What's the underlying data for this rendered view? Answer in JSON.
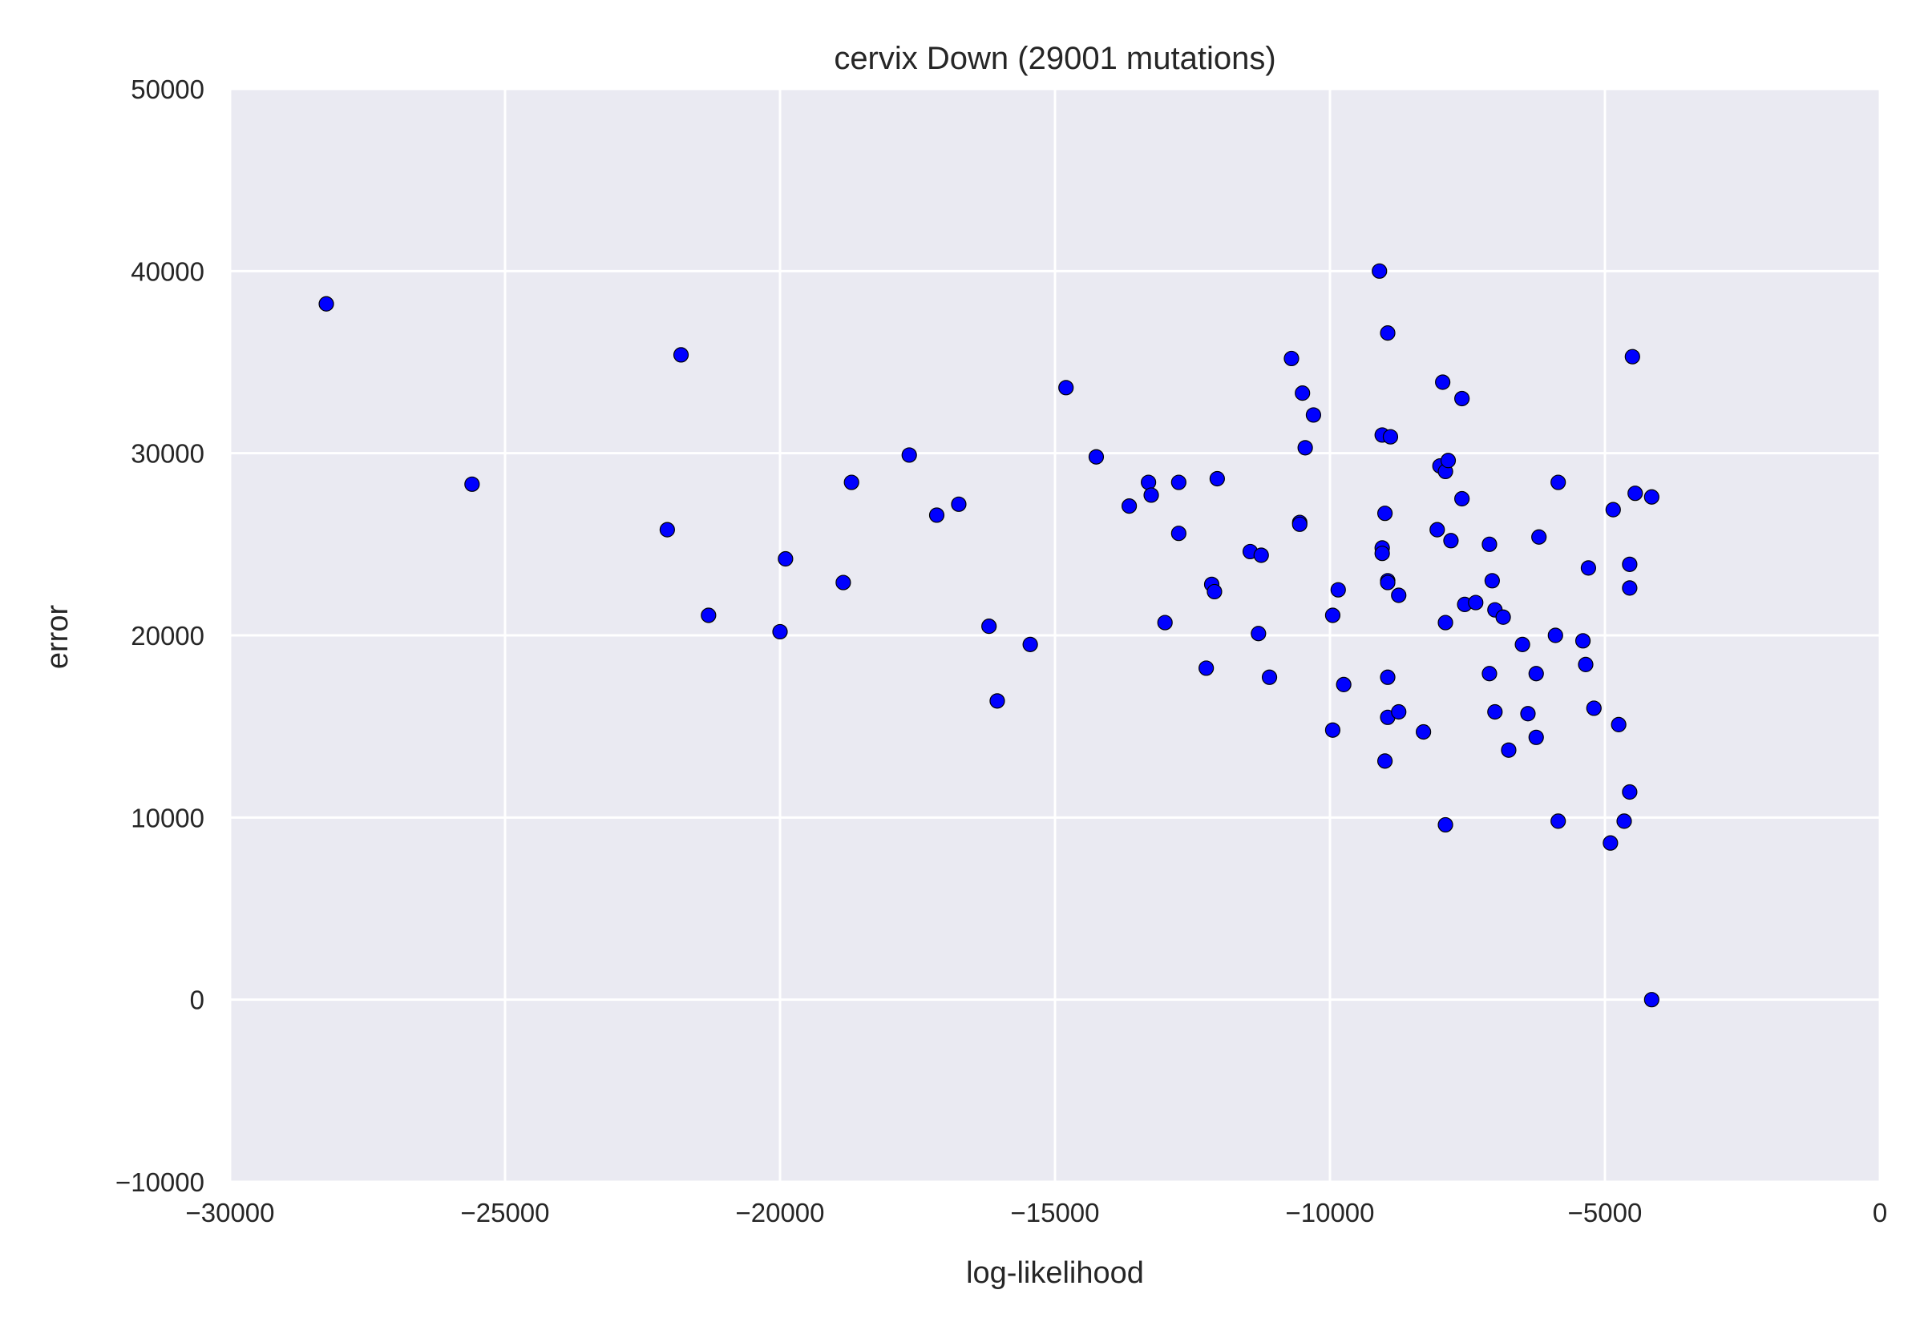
{
  "chart_data": {
    "type": "scatter",
    "title": "cervix Down (29001 mutations)",
    "xlabel": "log-likelihood",
    "ylabel": "error",
    "xlim": [
      -30000,
      0
    ],
    "ylim": [
      -10000,
      50000
    ],
    "xticks": [
      -30000,
      -25000,
      -20000,
      -15000,
      -10000,
      -5000,
      0
    ],
    "yticks": [
      -10000,
      0,
      10000,
      20000,
      30000,
      40000,
      50000
    ],
    "xtick_labels": [
      "−30000",
      "−25000",
      "−20000",
      "−15000",
      "−10000",
      "−5000",
      "0"
    ],
    "ytick_labels": [
      "−10000",
      "0",
      "10000",
      "20000",
      "30000",
      "40000",
      "50000"
    ],
    "grid": true,
    "background_color": "#eaeaf2",
    "marker_color": "#0000ff",
    "points": [
      [
        -28250,
        38200
      ],
      [
        -25600,
        28300
      ],
      [
        -22050,
        25800
      ],
      [
        -21800,
        35400
      ],
      [
        -21300,
        21100
      ],
      [
        -20000,
        20200
      ],
      [
        -19900,
        24200
      ],
      [
        -18850,
        22900
      ],
      [
        -18700,
        28400
      ],
      [
        -17650,
        29900
      ],
      [
        -17150,
        26600
      ],
      [
        -16750,
        27200
      ],
      [
        -16200,
        20500
      ],
      [
        -16050,
        16400
      ],
      [
        -15450,
        19500
      ],
      [
        -14800,
        33600
      ],
      [
        -14250,
        29800
      ],
      [
        -13650,
        27100
      ],
      [
        -13300,
        28400
      ],
      [
        -13250,
        27700
      ],
      [
        -13000,
        20700
      ],
      [
        -12750,
        28400
      ],
      [
        -12750,
        25600
      ],
      [
        -12250,
        18200
      ],
      [
        -12150,
        22800
      ],
      [
        -12100,
        22400
      ],
      [
        -12050,
        28600
      ],
      [
        -11450,
        24600
      ],
      [
        -11300,
        20100
      ],
      [
        -11250,
        24400
      ],
      [
        -11100,
        17700
      ],
      [
        -10700,
        35200
      ],
      [
        -10550,
        26200
      ],
      [
        -10550,
        26100
      ],
      [
        -10500,
        33300
      ],
      [
        -10450,
        30300
      ],
      [
        -10300,
        32100
      ],
      [
        -9950,
        21100
      ],
      [
        -9950,
        14800
      ],
      [
        -9850,
        22500
      ],
      [
        -9750,
        17300
      ],
      [
        -9100,
        40000
      ],
      [
        -9050,
        24800
      ],
      [
        -9050,
        24500
      ],
      [
        -9050,
        31000
      ],
      [
        -9000,
        26700
      ],
      [
        -8950,
        36600
      ],
      [
        -8950,
        23000
      ],
      [
        -8950,
        22900
      ],
      [
        -8950,
        17700
      ],
      [
        -8950,
        15500
      ],
      [
        -9000,
        13100
      ],
      [
        -8900,
        30900
      ],
      [
        -8750,
        22200
      ],
      [
        -8750,
        15800
      ],
      [
        -8300,
        14700
      ],
      [
        -8050,
        25800
      ],
      [
        -8000,
        29300
      ],
      [
        -7950,
        33900
      ],
      [
        -7900,
        29000
      ],
      [
        -7900,
        20700
      ],
      [
        -7900,
        9600
      ],
      [
        -7850,
        29600
      ],
      [
        -7800,
        25200
      ],
      [
        -7600,
        33000
      ],
      [
        -7600,
        27500
      ],
      [
        -7550,
        21700
      ],
      [
        -7350,
        21800
      ],
      [
        -7100,
        25000
      ],
      [
        -7100,
        17900
      ],
      [
        -7050,
        23000
      ],
      [
        -7000,
        21400
      ],
      [
        -7000,
        15800
      ],
      [
        -6850,
        21000
      ],
      [
        -6750,
        13700
      ],
      [
        -6500,
        19500
      ],
      [
        -6400,
        15700
      ],
      [
        -6250,
        17900
      ],
      [
        -6250,
        14400
      ],
      [
        -6200,
        25400
      ],
      [
        -5900,
        20000
      ],
      [
        -5850,
        28400
      ],
      [
        -5850,
        9800
      ],
      [
        -5400,
        19700
      ],
      [
        -5350,
        18400
      ],
      [
        -5300,
        23700
      ],
      [
        -5200,
        16000
      ],
      [
        -4900,
        8600
      ],
      [
        -4850,
        26900
      ],
      [
        -4750,
        15100
      ],
      [
        -4650,
        9800
      ],
      [
        -4550,
        11400
      ],
      [
        -4550,
        23900
      ],
      [
        -4550,
        22600
      ],
      [
        -4500,
        35300
      ],
      [
        -4450,
        27800
      ],
      [
        -4150,
        27600
      ],
      [
        -4150,
        0
      ]
    ]
  }
}
